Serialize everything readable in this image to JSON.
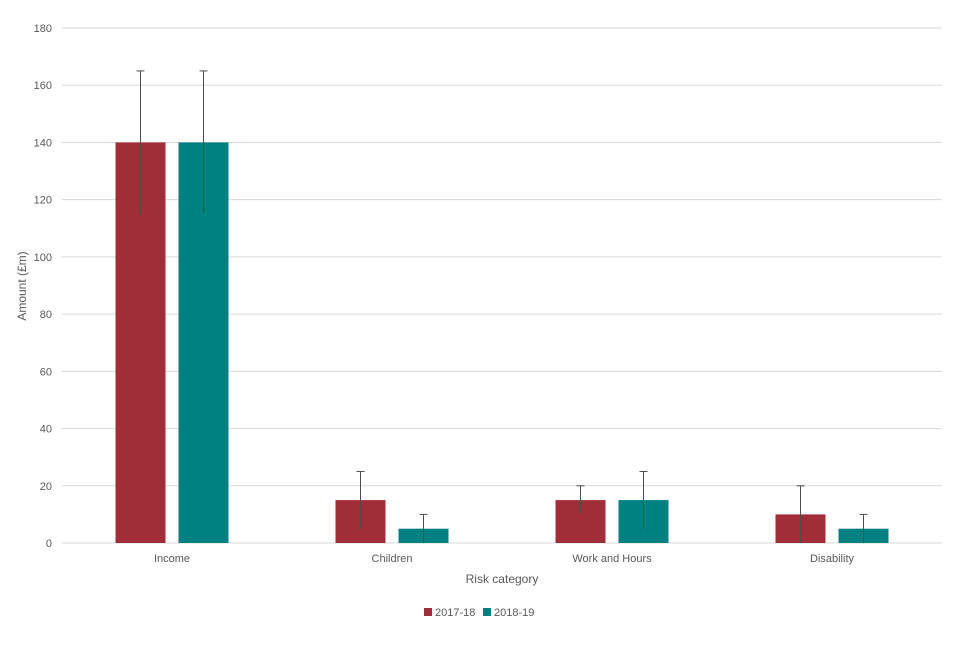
{
  "chart_data": {
    "type": "bar",
    "categories": [
      "Income",
      "Children",
      "Work and Hours",
      "Disability"
    ],
    "series": [
      {
        "name": "2017-18",
        "color": "#a12d39",
        "values": [
          140,
          15,
          15,
          10
        ],
        "error_low": [
          115,
          5,
          10,
          0
        ],
        "error_high": [
          165,
          25,
          20,
          20
        ]
      },
      {
        "name": "2018-19",
        "color": "#008080",
        "values": [
          140,
          5,
          15,
          5
        ],
        "error_low": [
          115,
          0,
          5,
          0
        ],
        "error_high": [
          165,
          10,
          25,
          10
        ]
      }
    ],
    "xlabel": "Risk category",
    "ylabel": "Amount (£m)",
    "ylim": [
      0,
      180
    ],
    "yticks": [
      0,
      20,
      40,
      60,
      80,
      100,
      120,
      140,
      160,
      180
    ],
    "grid": true,
    "legend_position": "bottom"
  }
}
